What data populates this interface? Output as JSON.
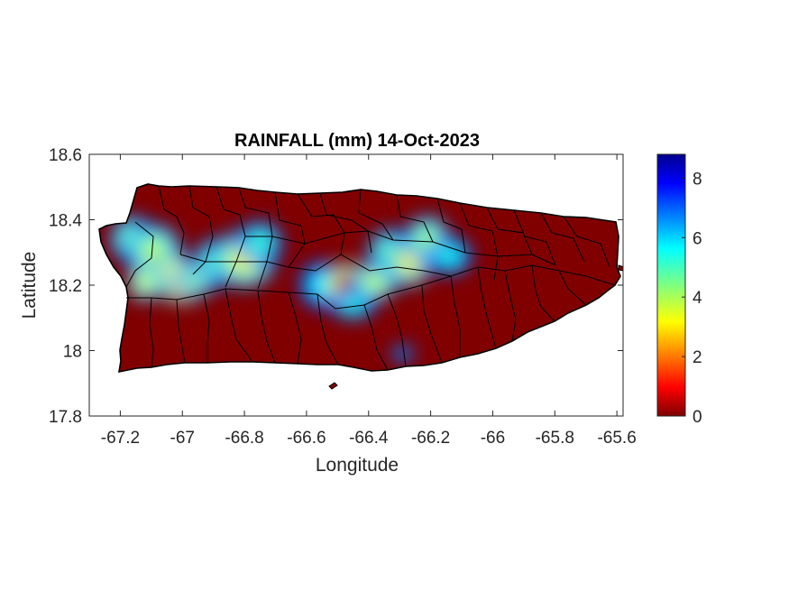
{
  "chart_data": {
    "type": "heatmap",
    "title": "RAINFALL (mm) 14-Oct-2023",
    "xlabel": "Longitude",
    "ylabel": "Latitude",
    "xlim": [
      -67.3,
      -65.58
    ],
    "ylim": [
      17.8,
      18.6
    ],
    "x_ticks": [
      -67.2,
      -67,
      -66.8,
      -66.6,
      -66.4,
      -66.2,
      -66,
      -65.8,
      -65.6
    ],
    "x_tick_labels": [
      "-67.2",
      "-67",
      "-66.8",
      "-66.6",
      "-66.4",
      "-66.2",
      "-66",
      "-65.8",
      "-65.6"
    ],
    "y_ticks": [
      17.8,
      18,
      18.2,
      18.4,
      18.6
    ],
    "y_tick_labels": [
      "17.8",
      "18",
      "18.2",
      "18.4",
      "18.6"
    ],
    "colorbar": {
      "colormap": "jet",
      "range": [
        0,
        8.8
      ],
      "ticks": [
        0,
        2,
        4,
        6,
        8
      ],
      "tick_labels": [
        "0",
        "2",
        "4",
        "6",
        "8"
      ]
    },
    "background_value": 0,
    "grid": false,
    "rain_cells": [
      {
        "lon": -67.16,
        "lat": 18.34,
        "rx": 0.05,
        "ry": 0.05,
        "value": 4.6
      },
      {
        "lon": -67.09,
        "lat": 18.3,
        "rx": 0.06,
        "ry": 0.06,
        "value": 5.0
      },
      {
        "lon": -67.03,
        "lat": 18.24,
        "rx": 0.05,
        "ry": 0.04,
        "value": 5.5
      },
      {
        "lon": -67.0,
        "lat": 18.19,
        "rx": 0.05,
        "ry": 0.03,
        "value": 6.6
      },
      {
        "lon": -67.12,
        "lat": 18.21,
        "rx": 0.04,
        "ry": 0.04,
        "value": 5.3
      },
      {
        "lon": -66.95,
        "lat": 18.22,
        "rx": 0.05,
        "ry": 0.035,
        "value": 4.9
      },
      {
        "lon": -66.89,
        "lat": 18.27,
        "rx": 0.05,
        "ry": 0.05,
        "value": 4.6
      },
      {
        "lon": -66.8,
        "lat": 18.28,
        "rx": 0.07,
        "ry": 0.06,
        "value": 5.6
      },
      {
        "lon": -66.75,
        "lat": 18.33,
        "rx": 0.05,
        "ry": 0.045,
        "value": 3.9
      },
      {
        "lon": -66.55,
        "lat": 18.2,
        "rx": 0.05,
        "ry": 0.05,
        "value": 3.4
      },
      {
        "lon": -66.46,
        "lat": 18.2,
        "rx": 0.06,
        "ry": 0.045,
        "value": 8.8
      },
      {
        "lon": -66.38,
        "lat": 18.21,
        "rx": 0.05,
        "ry": 0.04,
        "value": 5.1
      },
      {
        "lon": -66.45,
        "lat": 18.14,
        "rx": 0.05,
        "ry": 0.03,
        "value": 3.7
      },
      {
        "lon": -66.33,
        "lat": 18.3,
        "rx": 0.05,
        "ry": 0.05,
        "value": 4.5
      },
      {
        "lon": -66.27,
        "lat": 18.27,
        "rx": 0.05,
        "ry": 0.05,
        "value": 5.7
      },
      {
        "lon": -66.21,
        "lat": 18.34,
        "rx": 0.05,
        "ry": 0.05,
        "value": 4.8
      },
      {
        "lon": -66.14,
        "lat": 18.29,
        "rx": 0.05,
        "ry": 0.04,
        "value": 3.6
      },
      {
        "lon": -66.29,
        "lat": 17.99,
        "rx": 0.025,
        "ry": 0.018,
        "value": 2.8
      }
    ]
  }
}
